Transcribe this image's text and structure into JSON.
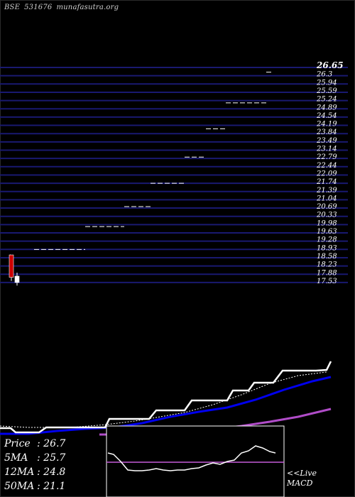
{
  "header": {
    "exchange": "BSE",
    "code": "531676",
    "source": "munafasutra.org"
  },
  "chart_data": {
    "type": "line",
    "price_axis": {
      "ticks": [
        "26.65",
        "26.3",
        "25.94",
        "25.59",
        "25.24",
        "24.89",
        "24.54",
        "24.19",
        "23.84",
        "23.49",
        "23.14",
        "22.79",
        "22.44",
        "22.09",
        "21.74",
        "21.39",
        "21.04",
        "20.69",
        "20.33",
        "19.98",
        "19.63",
        "19.28",
        "18.93",
        "18.58",
        "18.23",
        "17.88",
        "17.53"
      ],
      "range": [
        17.53,
        26.65
      ]
    },
    "price_levels": [
      {
        "x_start": 14,
        "x_end": 15,
        "value": 18.7
      },
      {
        "x_start": 48,
        "x_end": 120,
        "value": 18.93
      },
      {
        "x_start": 120,
        "x_end": 175,
        "value": 19.9
      },
      {
        "x_start": 175,
        "x_end": 212,
        "value": 20.75
      },
      {
        "x_start": 212,
        "x_end": 260,
        "value": 21.74
      },
      {
        "x_start": 260,
        "x_end": 290,
        "value": 22.85
      },
      {
        "x_start": 290,
        "x_end": 318,
        "value": 24.05
      },
      {
        "x_start": 318,
        "x_end": 375,
        "value": 25.15
      },
      {
        "x_start": 375,
        "x_end": 385,
        "value": 26.45
      }
    ],
    "candles": [
      {
        "x": 16,
        "open": 18.7,
        "close": 17.75,
        "low": 17.6,
        "high": 18.7,
        "color": "#cc0000"
      },
      {
        "x": 24,
        "open": 17.8,
        "close": 17.53,
        "low": 17.4,
        "high": 17.95,
        "color": "#ffffff"
      }
    ],
    "lower_panel": {
      "price_line": [
        [
          0,
          603
        ],
        [
          15,
          603
        ],
        [
          22,
          609
        ],
        [
          55,
          609
        ],
        [
          65,
          602
        ],
        [
          100,
          602
        ],
        [
          148,
          602
        ],
        [
          154,
          590
        ],
        [
          180,
          590
        ],
        [
          210,
          590
        ],
        [
          220,
          578
        ],
        [
          260,
          578
        ],
        [
          270,
          564
        ],
        [
          320,
          564
        ],
        [
          328,
          550
        ],
        [
          350,
          550
        ],
        [
          358,
          539
        ],
        [
          385,
          539
        ],
        [
          398,
          522
        ],
        [
          445,
          522
        ],
        [
          460,
          521
        ],
        [
          466,
          509
        ]
      ],
      "fast_ma": [
        [
          0,
          611
        ],
        [
          40,
          611
        ],
        [
          80,
          607
        ],
        [
          120,
          604
        ],
        [
          160,
          602
        ],
        [
          200,
          596
        ],
        [
          240,
          587
        ],
        [
          280,
          580
        ],
        [
          320,
          574
        ],
        [
          360,
          563
        ],
        [
          400,
          549
        ],
        [
          440,
          537
        ],
        [
          466,
          531
        ]
      ],
      "slow_ma": [
        [
          140,
          612
        ],
        [
          180,
          612
        ],
        [
          220,
          611
        ],
        [
          260,
          609
        ],
        [
          300,
          605
        ],
        [
          340,
          600
        ],
        [
          380,
          594
        ],
        [
          420,
          587
        ],
        [
          466,
          576
        ]
      ],
      "dotted_ma": [
        [
          0,
          600
        ],
        [
          40,
          602
        ],
        [
          100,
          602
        ],
        [
          150,
          598
        ],
        [
          190,
          593
        ],
        [
          220,
          588
        ],
        [
          260,
          581
        ],
        [
          300,
          570
        ],
        [
          340,
          556
        ],
        [
          380,
          540
        ],
        [
          420,
          529
        ],
        [
          460,
          524
        ]
      ]
    },
    "macd": {
      "level": 651,
      "line": [
        [
          152,
          638
        ],
        [
          160,
          640
        ],
        [
          170,
          650
        ],
        [
          180,
          662
        ],
        [
          190,
          663
        ],
        [
          200,
          663
        ],
        [
          210,
          662
        ],
        [
          220,
          660
        ],
        [
          230,
          662
        ],
        [
          240,
          663
        ],
        [
          250,
          662
        ],
        [
          260,
          662
        ],
        [
          270,
          660
        ],
        [
          280,
          659
        ],
        [
          290,
          655
        ],
        [
          300,
          652
        ],
        [
          310,
          654
        ],
        [
          320,
          650
        ],
        [
          330,
          648
        ],
        [
          340,
          638
        ],
        [
          350,
          635
        ],
        [
          360,
          628
        ],
        [
          370,
          631
        ],
        [
          380,
          636
        ],
        [
          388,
          638
        ]
      ]
    }
  },
  "stats": [
    {
      "label": "Price",
      "value": ": 26.7"
    },
    {
      "label": "5MA",
      "value": ": 25.7"
    },
    {
      "label": "12MA",
      "value": ": 24.8"
    },
    {
      "label": "50MA",
      "value": ": 21.1"
    }
  ],
  "macd_panel": {
    "line1": "<<Live",
    "line2": "MACD"
  },
  "colors": {
    "gridline": "#191970",
    "price_line": "#ffffff",
    "fast_ma": "#0000ee",
    "slow_ma": "#b04cc8",
    "macd_level": "#c45cd8"
  }
}
